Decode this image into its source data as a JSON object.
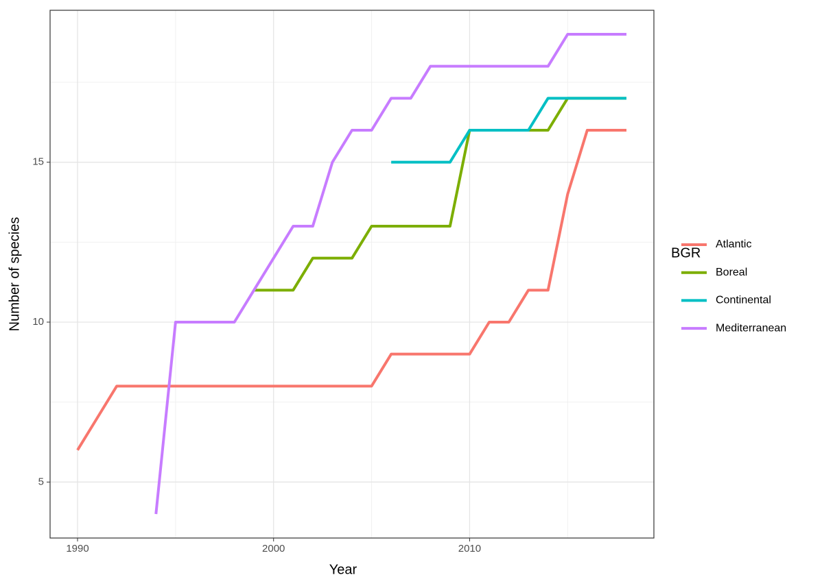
{
  "chart_data": {
    "type": "line",
    "x_label": "Year",
    "y_label": "Number of species",
    "x": [
      1990,
      1991,
      1992,
      1993,
      1994,
      1995,
      1996,
      1997,
      1998,
      1999,
      2000,
      2001,
      2002,
      2003,
      2004,
      2005,
      2006,
      2007,
      2008,
      2009,
      2010,
      2011,
      2012,
      2013,
      2014,
      2015,
      2016,
      2017,
      2018
    ],
    "series": [
      {
        "name": "Atlantic",
        "color": "#F8766D",
        "values": [
          6,
          7,
          8,
          8,
          8,
          8,
          8,
          8,
          8,
          8,
          8,
          8,
          8,
          8,
          8,
          8,
          9,
          9,
          9,
          9,
          9,
          10,
          10,
          11,
          11,
          14,
          16,
          16,
          16
        ]
      },
      {
        "name": "Boreal",
        "color": "#7CAE00",
        "values": [
          null,
          null,
          null,
          null,
          null,
          null,
          null,
          null,
          null,
          11,
          11,
          11,
          12,
          12,
          12,
          13,
          13,
          13,
          13,
          13,
          16,
          16,
          16,
          16,
          16,
          17,
          17,
          17,
          17
        ]
      },
      {
        "name": "Continental",
        "color": "#00BFC4",
        "values": [
          null,
          null,
          null,
          null,
          null,
          null,
          null,
          null,
          null,
          null,
          null,
          null,
          null,
          null,
          null,
          null,
          15,
          15,
          15,
          15,
          16,
          16,
          16,
          16,
          17,
          17,
          17,
          17,
          17
        ]
      },
      {
        "name": "Mediterranean",
        "color": "#C77CFF",
        "values": [
          null,
          null,
          null,
          null,
          4,
          10,
          10,
          10,
          10,
          11,
          12,
          13,
          13,
          15,
          16,
          16,
          17,
          17,
          18,
          18,
          18,
          18,
          18,
          18,
          18,
          19,
          19,
          19,
          19
        ]
      }
    ],
    "legend_title": "BGR",
    "legend_position": "right",
    "xlim": [
      1988.6,
      2019.4
    ],
    "xticks": [
      1990,
      2000,
      2010
    ],
    "ylim": [
      3.25,
      19.75
    ],
    "yticks": [
      5,
      10,
      15
    ],
    "x_minor_grid": [
      1995,
      2005,
      2015
    ],
    "y_minor_grid": [
      7.5,
      12.5,
      17.5
    ],
    "grid": true
  }
}
